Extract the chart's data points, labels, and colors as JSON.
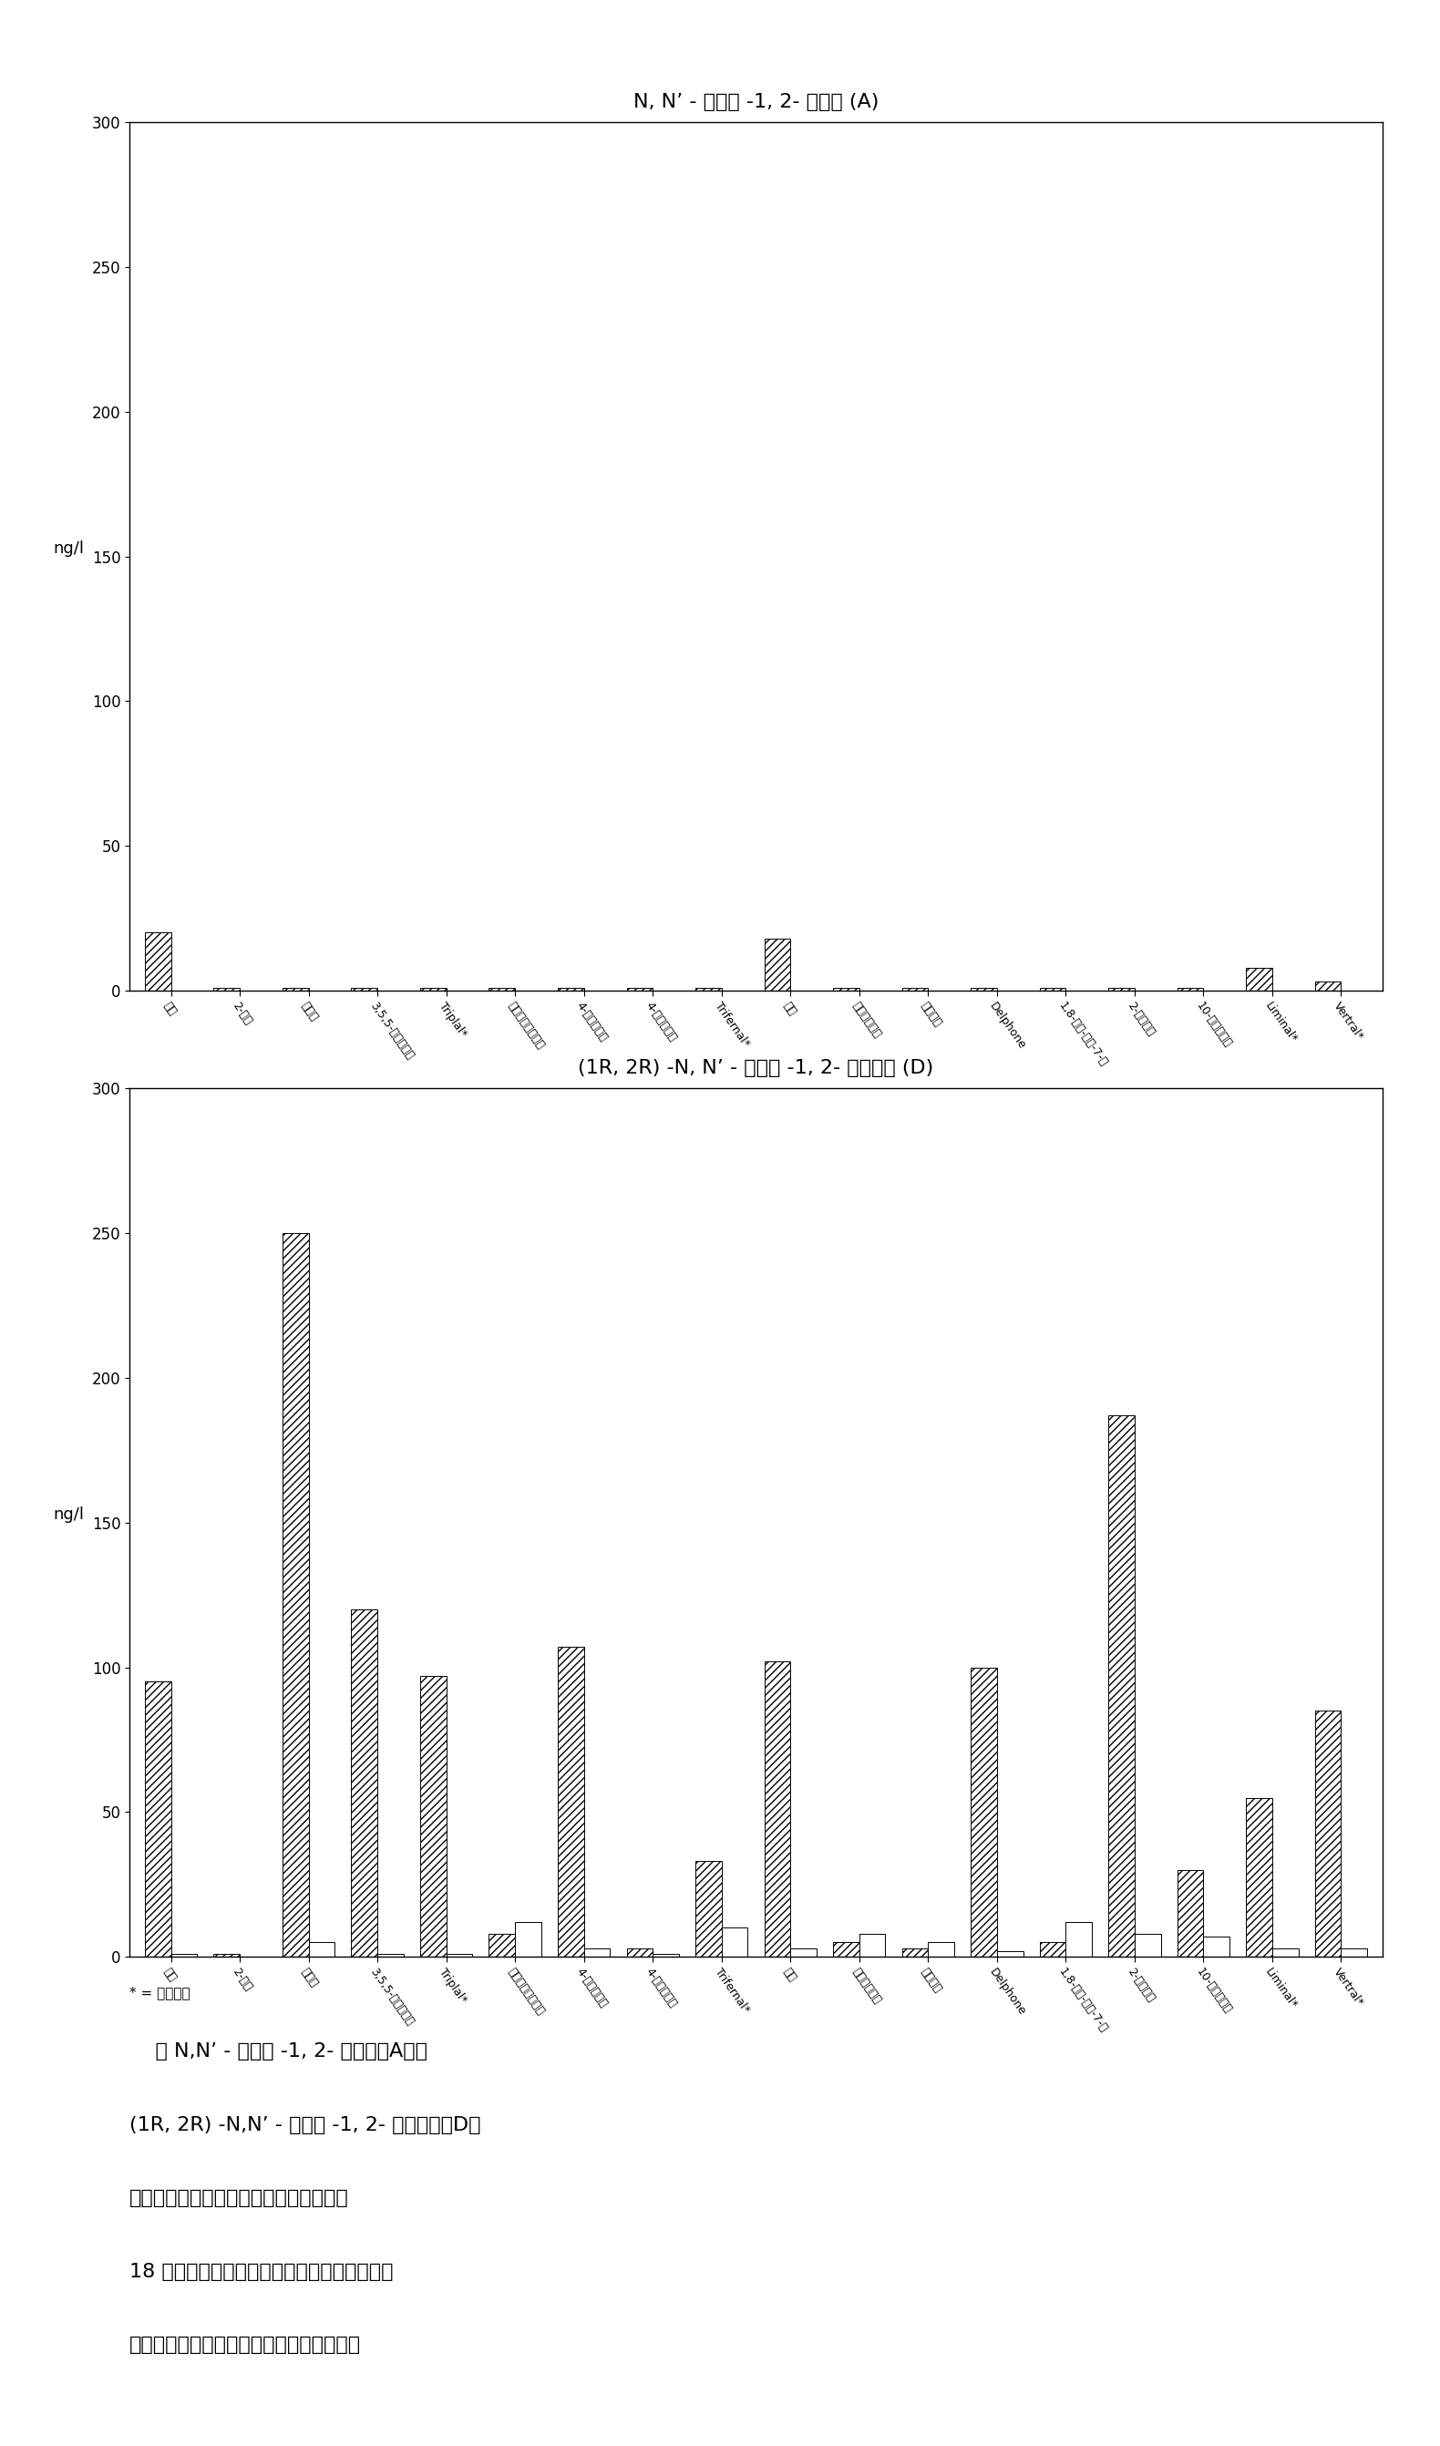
{
  "title_A": "N, N’ - 二甲基 -1, 2- 乙二胺 (A)",
  "title_D": "(1R, 2R) -N, N’ - 二苄基 -1, 2- 环己二胺 (D)",
  "ylabel": "ng/l",
  "ylim": [
    0,
    300
  ],
  "yticks": [
    0,
    50,
    100,
    150,
    200,
    250,
    300
  ],
  "categories": [
    "粺醇",
    "2-庚酸",
    "苯甲醇",
    "3,5,5-三甲基己醇",
    "Triplal*",
    "三甲基环己烯甲醇",
    "4-乙基苯甲醇",
    "4-甲基苯乙酸",
    "Trifernal*",
    "茅醇",
    "甲氧基甜瓜醇",
    "木素丙酸",
    "Delphone",
    "1,8-对盖-二烯-7-醇",
    "2-甲基苯醇",
    "10-十一磳烯醇",
    "Liminal*",
    "Vertral*"
  ],
  "values_A_gray": [
    20,
    1,
    1,
    1,
    1,
    1,
    1,
    1,
    1,
    18,
    1,
    1,
    1,
    1,
    1,
    1,
    8,
    3
  ],
  "values_A_white": [
    0,
    0,
    0,
    0,
    0,
    0,
    0,
    0,
    0,
    0,
    0,
    0,
    0,
    0,
    0,
    0,
    0,
    0
  ],
  "values_D_gray": [
    95,
    1,
    250,
    120,
    97,
    8,
    107,
    3,
    33,
    102,
    5,
    3,
    100,
    5,
    187,
    30,
    55,
    85
  ],
  "values_D_white": [
    1,
    0,
    5,
    1,
    1,
    12,
    3,
    1,
    10,
    3,
    8,
    5,
    2,
    12,
    8,
    7,
    3,
    3
  ],
  "footnote": "* = 注册商标",
  "caption_line1": "    在 N,N’ - 二甲基 -1, 2- 乙二胺（A）和",
  "caption_line2": "(1R, 2R) -N,N’ - 二苄基 -1, 2- 环己二胺（D）",
  "caption_line3": "存在（灰条）或不存在（白条）下，对于",
  "caption_line4": "18 种挥发性醇和酸的混合物在干织物上测定的",
  "caption_line5": "顶空浓度的比较（以相同的标度表示数据）",
  "background_color": "#ffffff",
  "hatch_color": "#555555",
  "white_color": "#ffffff",
  "hatch_pattern": "////",
  "bar_edge_color": "#000000"
}
